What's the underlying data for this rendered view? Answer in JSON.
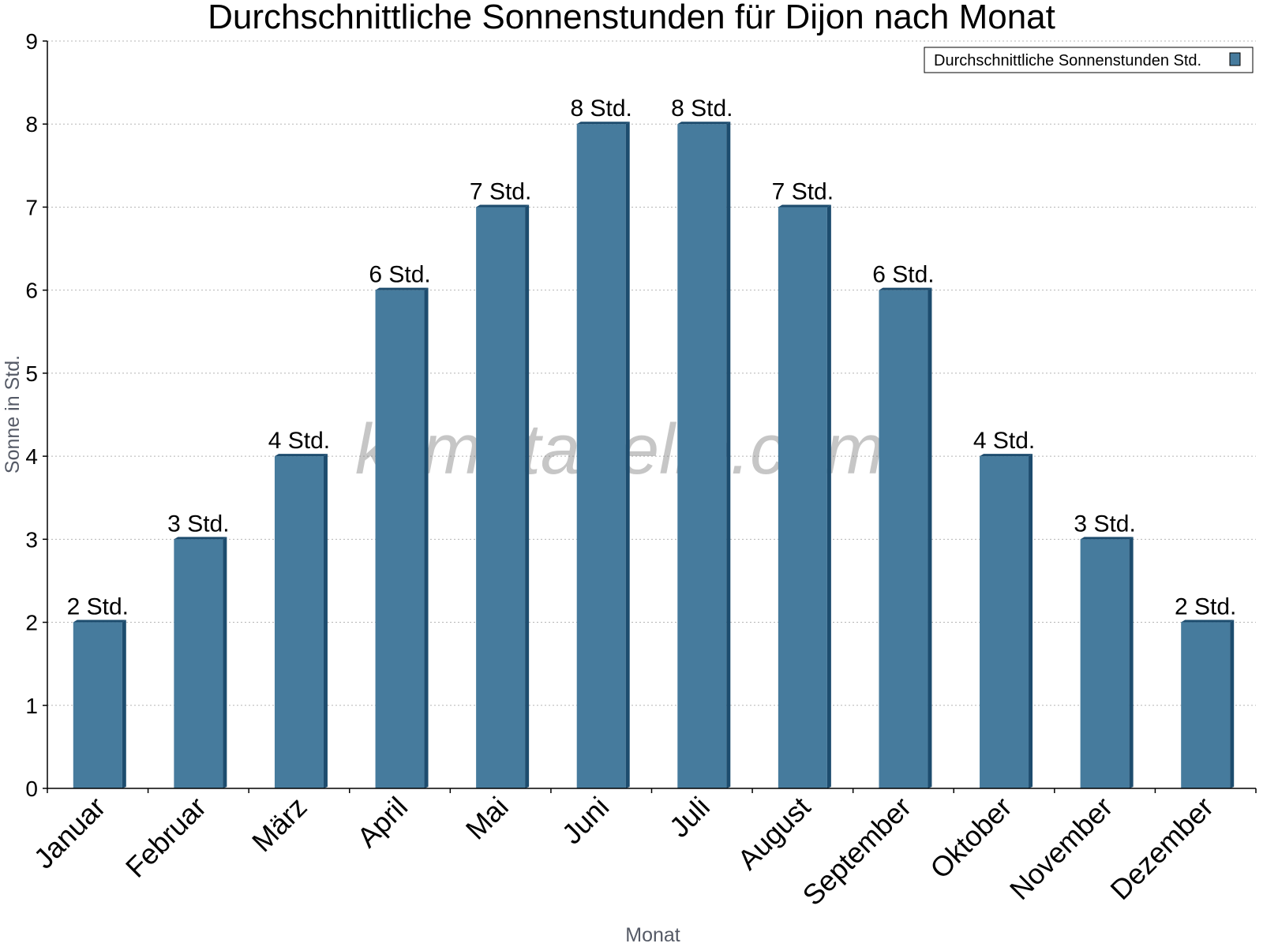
{
  "chart_data": {
    "type": "bar",
    "title": "Durchschnittliche Sonnenstunden für Dijon nach Monat",
    "xlabel": "Monat",
    "ylabel": "Sonne in Std.",
    "ylim": [
      0,
      9
    ],
    "yticks": [
      "0",
      "1",
      "2",
      "3",
      "4",
      "5",
      "6",
      "7",
      "8",
      "9"
    ],
    "grid": true,
    "legend_position": "top-right",
    "categories": [
      "Januar",
      "Februar",
      "März",
      "April",
      "Mai",
      "Juni",
      "Juli",
      "August",
      "September",
      "Oktober",
      "November",
      "Dezember"
    ],
    "series": [
      {
        "name": "Durchschnittliche Sonnenstunden Std.",
        "values": [
          2,
          3,
          4,
          6,
          7,
          8,
          8,
          7,
          6,
          4,
          3,
          2
        ],
        "data_labels": [
          "2 Std.",
          "3 Std.",
          "4 Std.",
          "6 Std.",
          "7 Std.",
          "8 Std.",
          "8 Std.",
          "7 Std.",
          "6 Std.",
          "4 Std.",
          "3 Std.",
          "2 Std."
        ],
        "color": "#467b9d",
        "edge_color": "#1d4c6e"
      }
    ]
  },
  "watermark": "klimatabelle.com"
}
